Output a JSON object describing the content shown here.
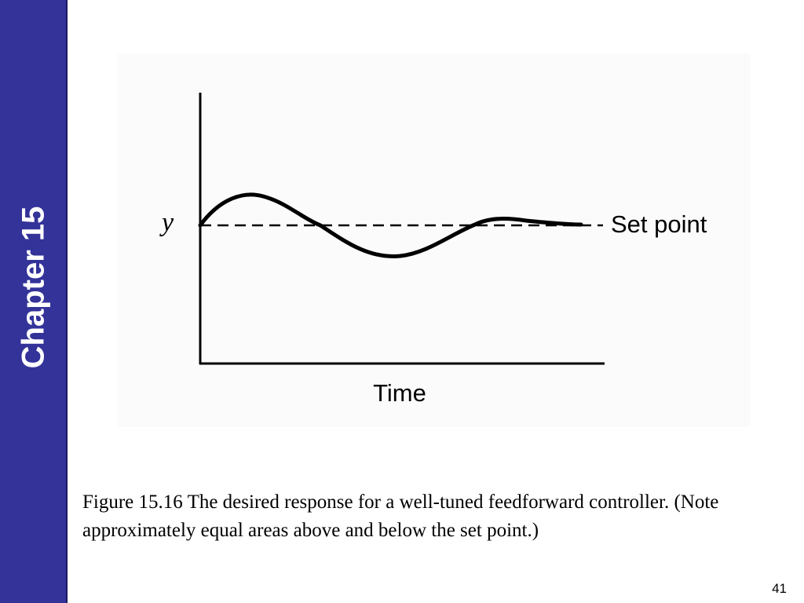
{
  "sidebar": {
    "title": "Chapter 15",
    "color": "#333399"
  },
  "figure": {
    "y_label": "y",
    "setpoint_label": "Set point",
    "x_label": "Time",
    "curve_color": "#000000"
  },
  "caption": "Figure 15.16 The desired response for a well-tuned feedforward controller. (Note approximately equal areas above and below the set point.)",
  "slide_number": "41"
}
